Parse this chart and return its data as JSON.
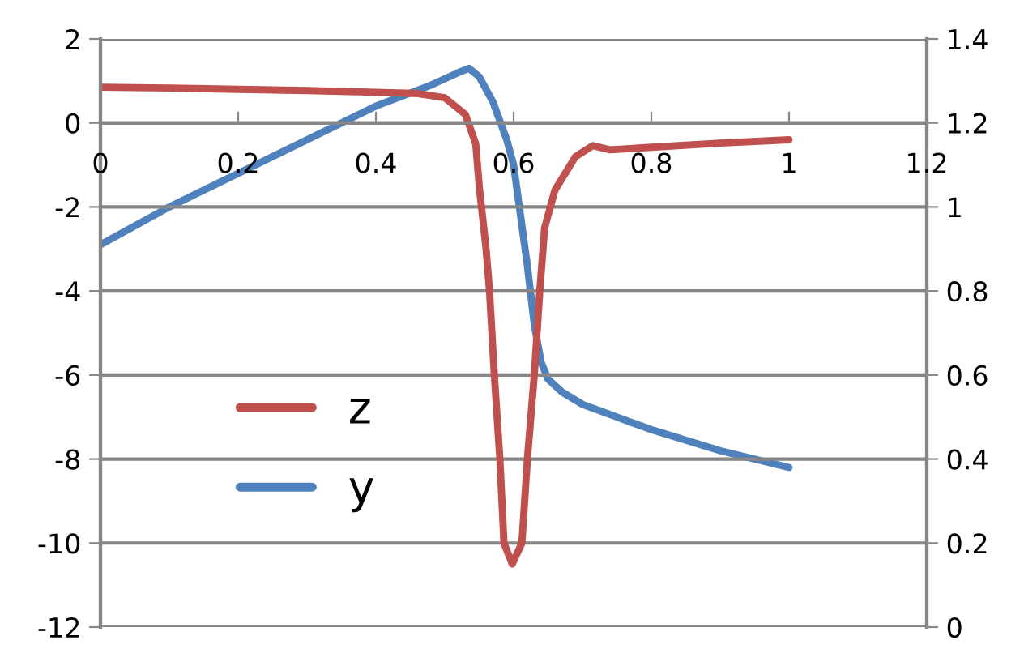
{
  "chart_data": {
    "type": "line",
    "xlim": [
      0,
      1.2
    ],
    "xticks": [
      0,
      0.2,
      0.4,
      0.6,
      0.8,
      1,
      1.2
    ],
    "ylim": [
      -12,
      2
    ],
    "yticks": [
      -12,
      -10,
      -8,
      -6,
      -4,
      -2,
      0,
      2
    ],
    "y2lim": [
      0,
      1.4
    ],
    "y2ticks": [
      0,
      0.2,
      0.4,
      0.6,
      0.8,
      1,
      1.2,
      1.4
    ],
    "grid": "y",
    "legend": "left",
    "marker": "none",
    "line_style": "solid",
    "series": [
      {
        "name": "z",
        "color": "#c0504d",
        "x": [
          0,
          0.1,
          0.2,
          0.3,
          0.4,
          0.46,
          0.5,
          0.53,
          0.545,
          0.55,
          0.56,
          0.565,
          0.572,
          0.58,
          0.586,
          0.598,
          0.612,
          0.62,
          0.63,
          0.638,
          0.645,
          0.66,
          0.69,
          0.715,
          0.74,
          0.8,
          0.9,
          1.0
        ],
        "values": [
          0.85,
          0.83,
          0.8,
          0.77,
          0.73,
          0.7,
          0.6,
          0.2,
          -0.5,
          -1.5,
          -3,
          -4,
          -6,
          -8,
          -10,
          -10.5,
          -10,
          -8,
          -6,
          -4,
          -2.5,
          -1.6,
          -0.8,
          -0.54,
          -0.64,
          -0.58,
          -0.48,
          -0.4
        ]
      },
      {
        "name": "y",
        "color": "#4f81bd",
        "axis": "y2",
        "x": [
          0,
          0.1,
          0.2,
          0.3,
          0.4,
          0.48,
          0.52,
          0.535,
          0.55,
          0.57,
          0.59,
          0.6,
          0.61,
          0.62,
          0.63,
          0.64,
          0.65,
          0.67,
          0.7,
          0.8,
          0.9,
          1.0
        ],
        "values": [
          0.91,
          1.0,
          1.08,
          1.16,
          1.24,
          1.29,
          1.32,
          1.33,
          1.31,
          1.25,
          1.16,
          1.1,
          0.98,
          0.86,
          0.72,
          0.63,
          0.59,
          0.56,
          0.53,
          0.47,
          0.42,
          0.38
        ]
      }
    ]
  }
}
